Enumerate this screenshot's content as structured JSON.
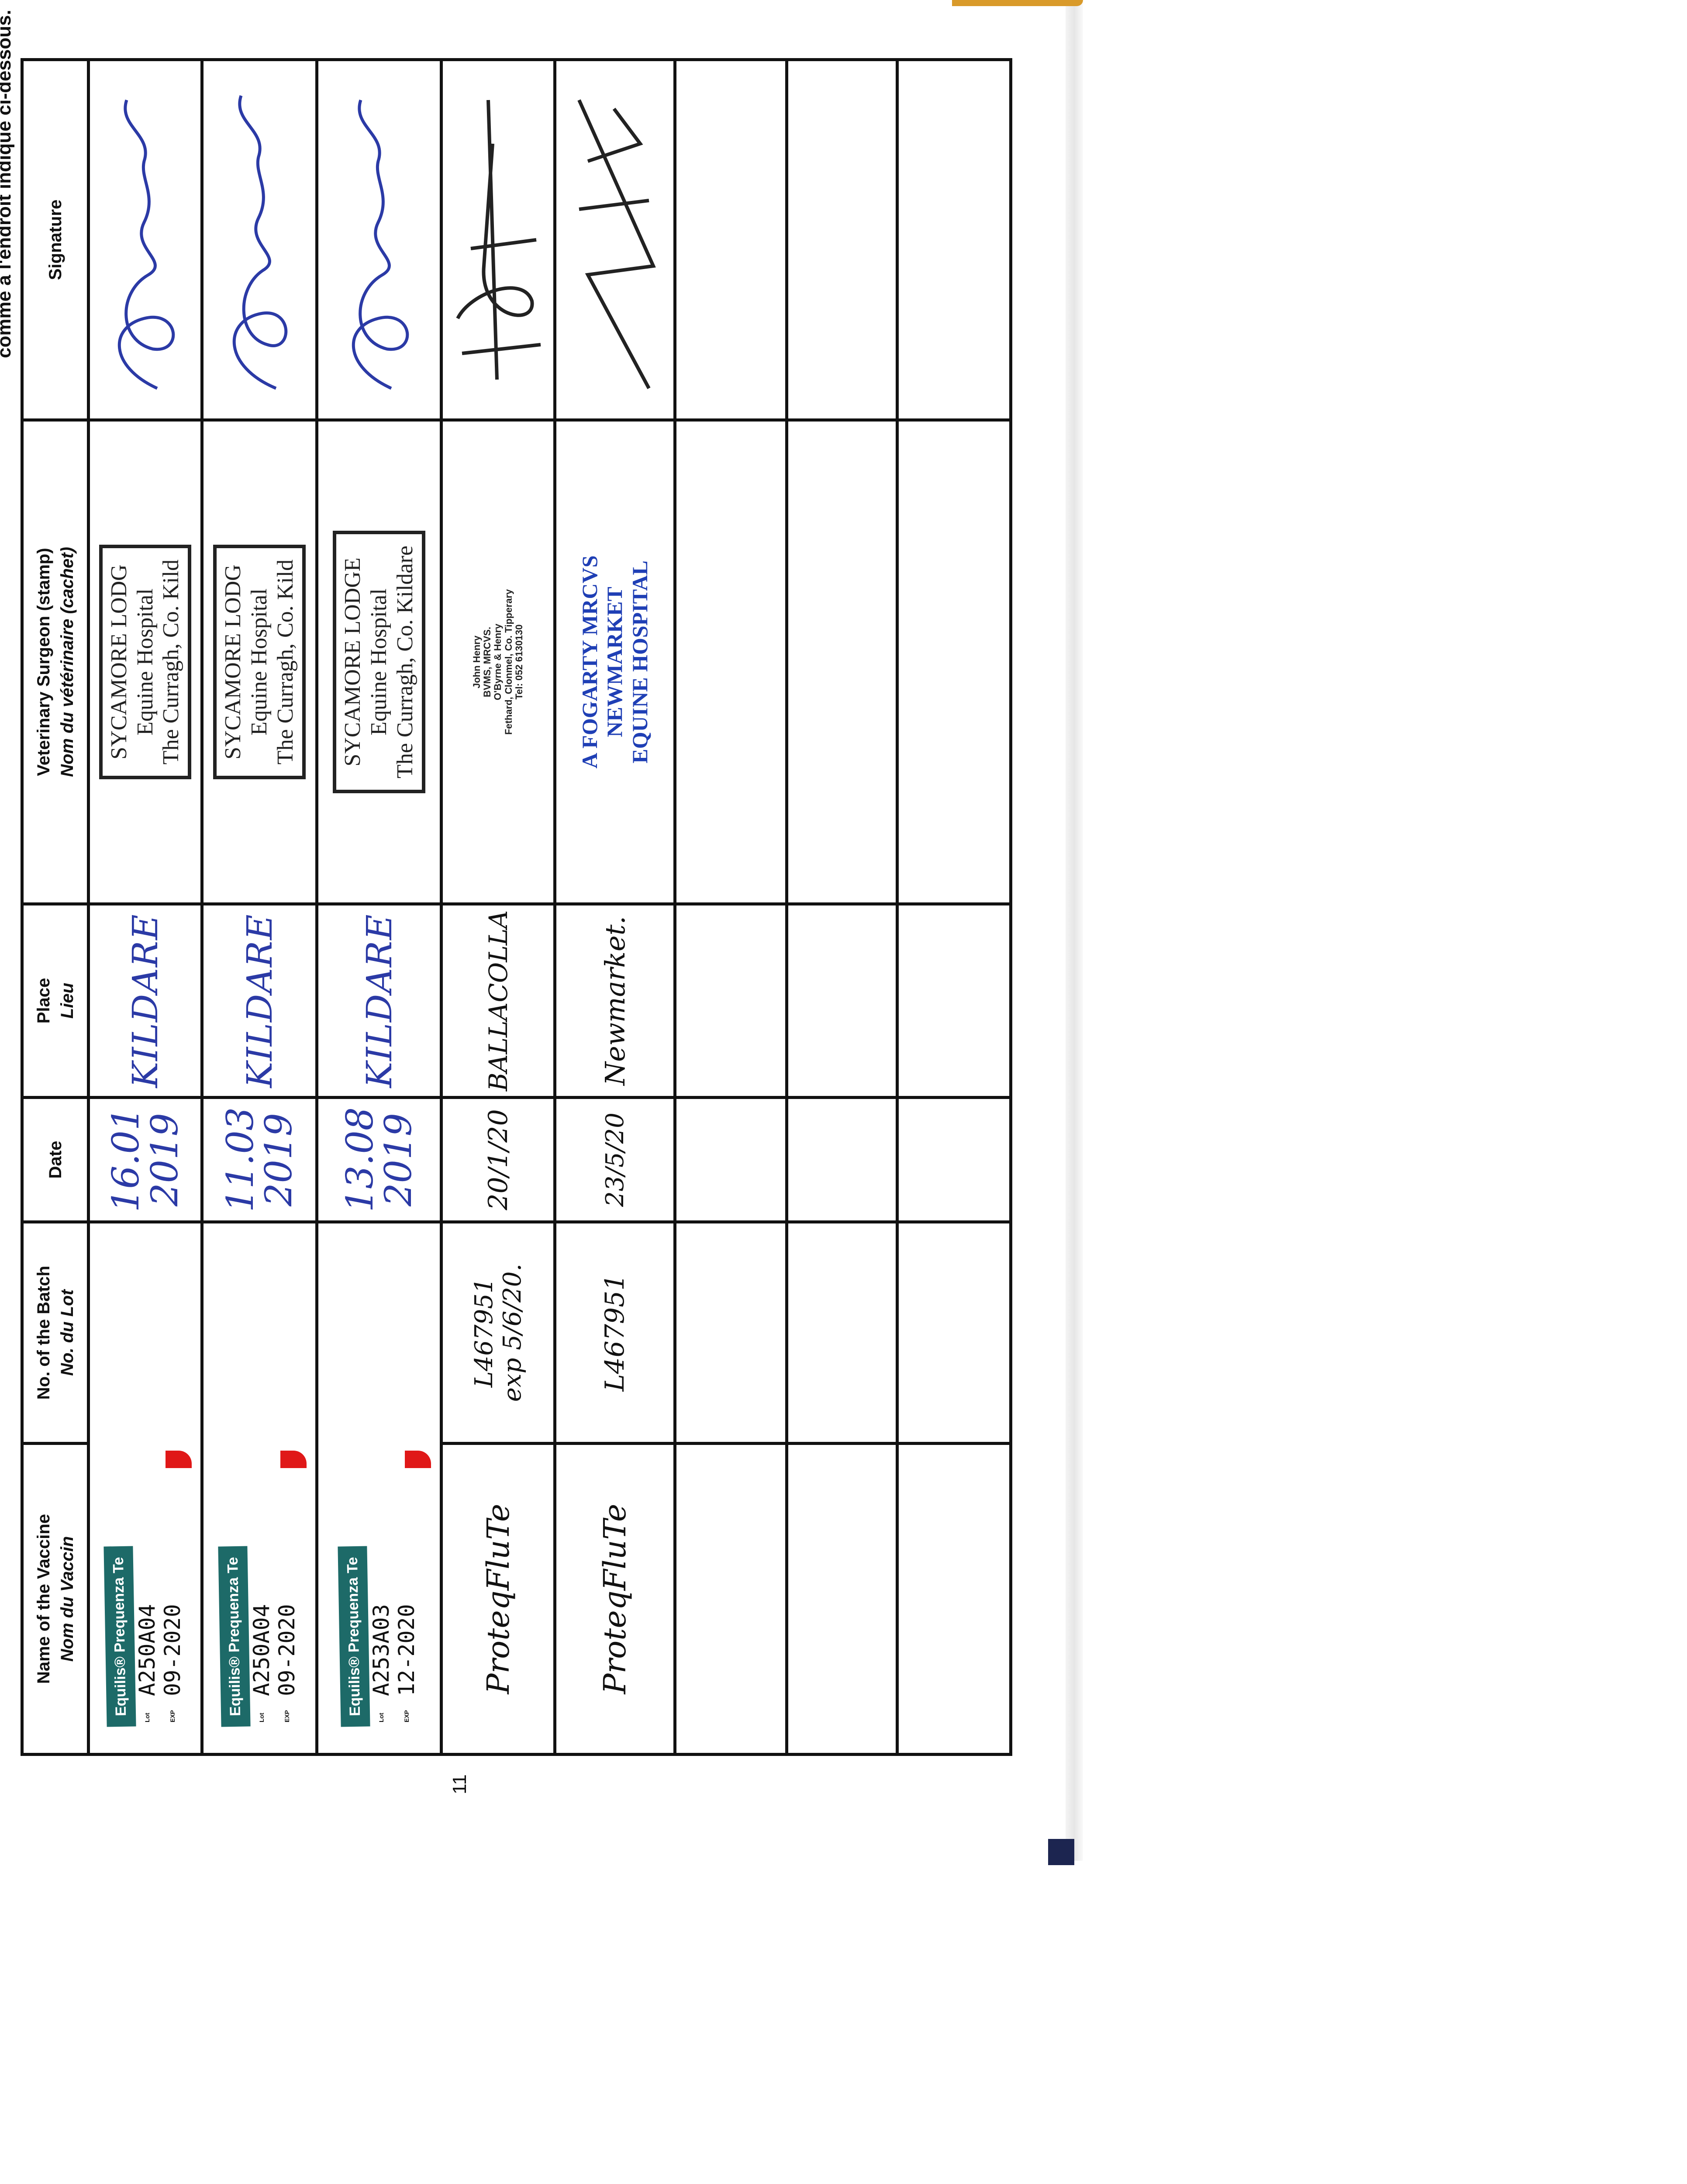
{
  "intro_text": "comme à l'endroit indiqué ci-dessous.",
  "page_number": "11",
  "columns": [
    {
      "en": "Name of the Vaccine",
      "fr": "Nom du Vaccin"
    },
    {
      "en": "No. of the Batch",
      "fr": "No. du Lot"
    },
    {
      "en": "Date",
      "fr": ""
    },
    {
      "en": "Place",
      "fr": "Lieu"
    },
    {
      "en": "Veterinary Surgeon (stamp)",
      "fr": "Nom du vétérinaire (cachet)"
    },
    {
      "en": "Signature",
      "fr": ""
    }
  ],
  "rows": [
    {
      "sticker": {
        "brand": "Equilis® Prequenza Te",
        "lot_tag": "Lot",
        "exp_tag": "EXP",
        "lot": "A250A04",
        "exp": "09-2020"
      },
      "date": [
        "16.01",
        "2019"
      ],
      "place": "KILDARE",
      "stamp": [
        "SYCAMORE LODG",
        "Equine Hospital",
        "The Curragh, Co. Kild"
      ]
    },
    {
      "sticker": {
        "brand": "Equilis® Prequenza Te",
        "lot_tag": "Lot",
        "exp_tag": "EXP",
        "lot": "A250A04",
        "exp": "09-2020"
      },
      "date": [
        "11.03",
        "2019"
      ],
      "place": "KILDARE",
      "stamp": [
        "SYCAMORE LODG",
        "Equine Hospital",
        "The Curragh, Co. Kild"
      ]
    },
    {
      "sticker": {
        "brand": "Equilis® Prequenza Te",
        "lot_tag": "Lot",
        "exp_tag": "EXP",
        "lot": "A253A03",
        "exp": "12-2020"
      },
      "date": [
        "13.08",
        "2019"
      ],
      "place": "KILDARE",
      "stamp": [
        "SYCAMORE LODGE",
        "Equine Hospital",
        "The Curragh, Co. Kildare"
      ]
    },
    {
      "vaccine": "ProteqFluTe",
      "batch": [
        "L467951",
        "exp 5/6/20."
      ],
      "date": [
        "20/1/20"
      ],
      "place": "BALLACOLLA",
      "stamp": [
        "John Henry",
        "BVMS, MRCVS.",
        "O'Byrne & Henry",
        "Fethard, Clonmel, Co. Tipperary",
        "Tel: 052 6130130"
      ]
    },
    {
      "vaccine": "ProteqFluTe",
      "batch": [
        "L467951"
      ],
      "date": [
        "23/5/20"
      ],
      "place": "Newmarket.",
      "stamp": [
        "A FOGARTY MRCVS",
        "NEWMARKET",
        "EQUINE HOSPITAL"
      ]
    }
  ],
  "colors": {
    "ink_blue": "#2b3aa6",
    "sticker_teal": "#1d6a68",
    "stamp_blue": "#1f3fb5"
  },
  "icons": [
    "signature-blue-1",
    "signature-blue-2",
    "signature-blue-3",
    "signature-black-1",
    "signature-black-2"
  ]
}
